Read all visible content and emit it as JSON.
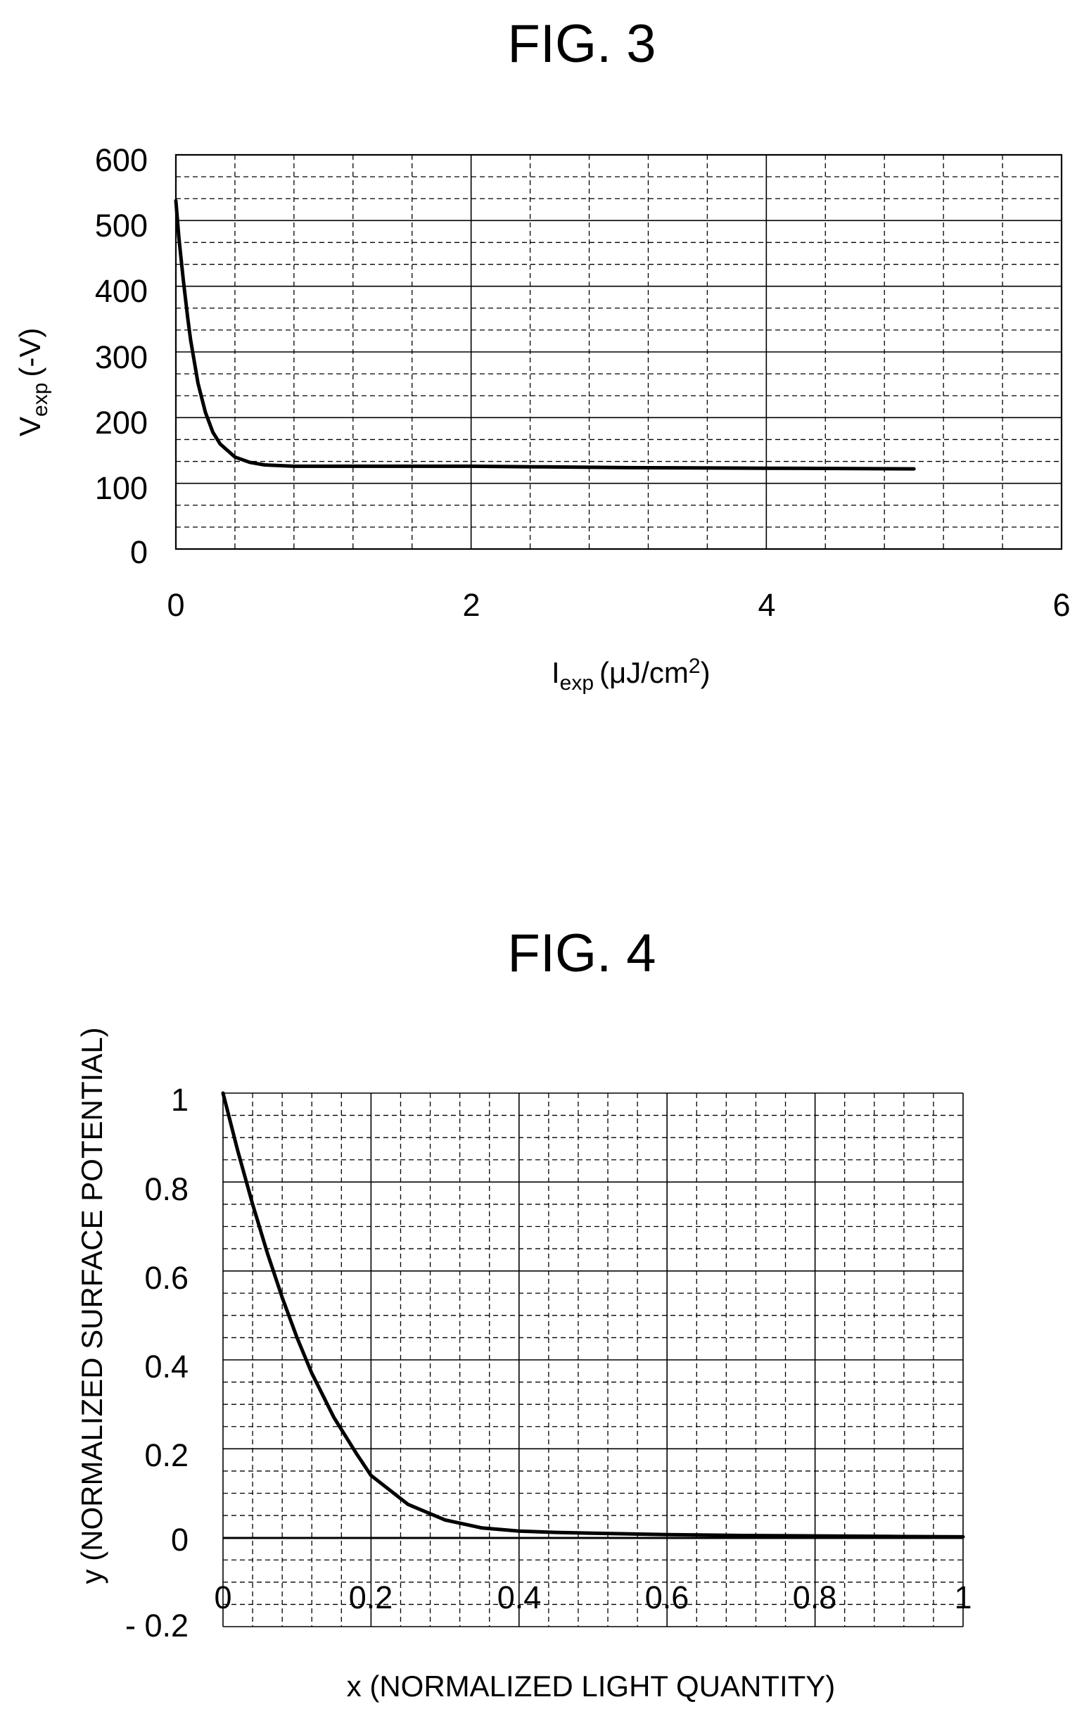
{
  "figures": [
    {
      "title": "FIG. 3",
      "xlabel": {
        "main": "I",
        "sub": "exp",
        "unit_open": "(μJ/cm",
        "unit_sup": "2",
        "unit_close": ")"
      },
      "ylabel": {
        "main": "V",
        "sub": "exp",
        "unit": "(-V)"
      },
      "xticks": [
        "0",
        "2",
        "4",
        "6"
      ],
      "yticks": [
        "0",
        "100",
        "200",
        "300",
        "400",
        "500",
        "600"
      ]
    },
    {
      "title": "FIG. 4",
      "xlabel": "x (NORMALIZED LIGHT QUANTITY)",
      "ylabel": "y (NORMALIZED SURFACE POTENTIAL)",
      "xticks": [
        "0",
        "0.2",
        "0.4",
        "0.6",
        "0.8",
        "1"
      ],
      "yticks": [
        "- 0.2",
        "0",
        "0.2",
        "0.4",
        "0.6",
        "0.8",
        "1"
      ]
    }
  ],
  "chart_data": [
    {
      "type": "line",
      "title": "FIG. 3",
      "xlabel": "Iexp (μJ/cm2)",
      "ylabel": "Vexp (-V)",
      "xlim": [
        0,
        6
      ],
      "ylim": [
        0,
        600
      ],
      "grid": true,
      "x": [
        0,
        0.02,
        0.05,
        0.08,
        0.1,
        0.15,
        0.2,
        0.25,
        0.3,
        0.4,
        0.5,
        0.6,
        0.8,
        1.0,
        1.5,
        2.0,
        2.5,
        3.0,
        4.0,
        5.0
      ],
      "y": [
        530,
        475,
        410,
        352,
        318,
        252,
        208,
        178,
        160,
        140,
        132,
        128,
        126,
        126,
        126,
        126,
        125,
        124,
        123,
        122
      ]
    },
    {
      "type": "line",
      "title": "FIG. 4",
      "xlabel": "x (NORMALIZED LIGHT QUANTITY)",
      "ylabel": "y (NORMALIZED SURFACE POTENTIAL)",
      "xlim": [
        0,
        1
      ],
      "ylim": [
        -0.2,
        1
      ],
      "grid": true,
      "x": [
        0,
        0.02,
        0.04,
        0.06,
        0.08,
        0.1,
        0.12,
        0.15,
        0.18,
        0.2,
        0.25,
        0.3,
        0.35,
        0.4,
        0.45,
        0.5,
        0.6,
        0.7,
        0.8,
        0.9,
        1.0
      ],
      "y": [
        1.0,
        0.87,
        0.75,
        0.64,
        0.54,
        0.45,
        0.37,
        0.27,
        0.19,
        0.14,
        0.075,
        0.04,
        0.022,
        0.015,
        0.012,
        0.01,
        0.007,
        0.005,
        0.004,
        0.003,
        0.002
      ]
    }
  ]
}
